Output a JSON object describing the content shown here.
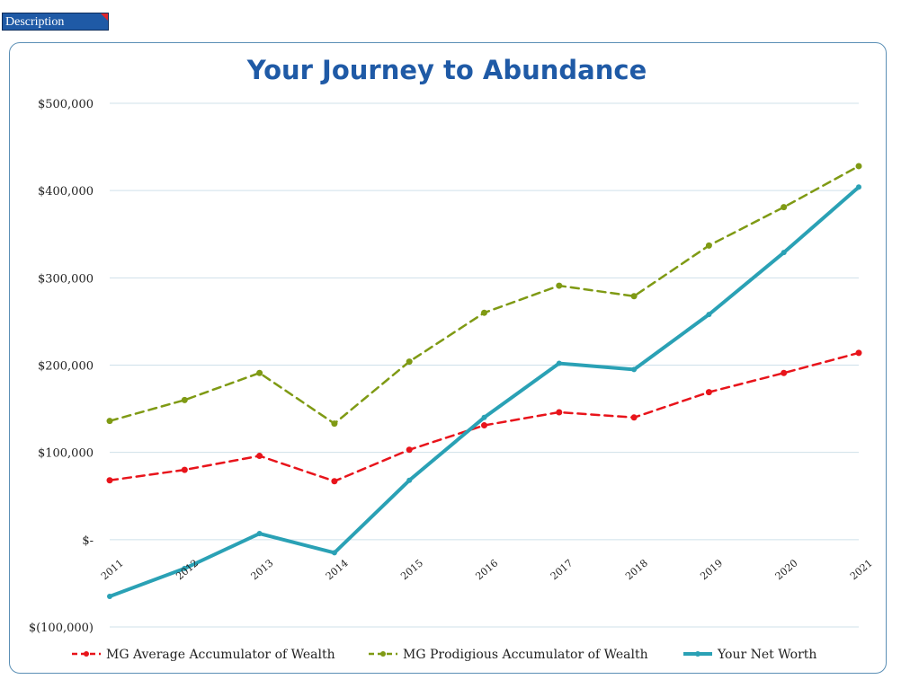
{
  "description_tab": {
    "label": "Description"
  },
  "chart_data": {
    "type": "line",
    "title": "Your Journey to Abundance",
    "xlabel": "",
    "ylabel": "",
    "ylim": [
      -100000,
      500000
    ],
    "y_ticks": [
      500000,
      400000,
      300000,
      200000,
      100000,
      0,
      -100000
    ],
    "y_tick_labels": [
      "$500,000",
      "$400,000",
      "$300,000",
      "$200,000",
      "$100,000",
      "$-",
      "$(100,000)"
    ],
    "categories": [
      "2011",
      "2012",
      "2013",
      "2014",
      "2015",
      "2016",
      "2017",
      "2018",
      "2019",
      "2020",
      "2021"
    ],
    "grid": true,
    "legend_position": "bottom",
    "series": [
      {
        "name": "MG Average Accumulator of Wealth",
        "color": "#e8141b",
        "style": "dashed",
        "values": [
          68000,
          80000,
          96000,
          67000,
          103000,
          131000,
          146000,
          140000,
          169000,
          191000,
          214000
        ]
      },
      {
        "name": "MG Prodigious Accumulator of Wealth",
        "color": "#7f9a14",
        "style": "dashed",
        "values": [
          136000,
          160000,
          191000,
          133000,
          204000,
          260000,
          291000,
          279000,
          337000,
          381000,
          428000
        ]
      },
      {
        "name": "Your Net Worth",
        "color": "#2aa1b5",
        "style": "solid",
        "values": [
          -65000,
          -33000,
          7000,
          -15000,
          68000,
          140000,
          202000,
          195000,
          258000,
          329000,
          404000
        ]
      }
    ]
  }
}
